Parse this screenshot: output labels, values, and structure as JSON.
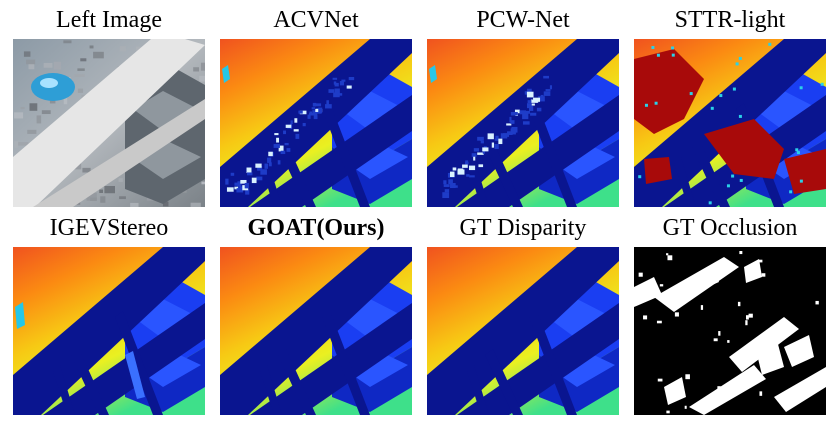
{
  "figure": {
    "panels": [
      {
        "id": "left-image",
        "caption": "Left Image",
        "kind": "rgb",
        "bold": false
      },
      {
        "id": "acvnet",
        "caption": "ACVNet",
        "kind": "disparity",
        "bold": false,
        "artifact": "noise"
      },
      {
        "id": "pcw-net",
        "caption": "PCW-Net",
        "kind": "disparity",
        "bold": false,
        "artifact": "noise"
      },
      {
        "id": "sttr-light",
        "caption": "STTR-light",
        "kind": "disparity",
        "bold": false,
        "artifact": "occlusion-red"
      },
      {
        "id": "igevstereo",
        "caption": "IGEVStereo",
        "kind": "disparity",
        "bold": false,
        "artifact": "light"
      },
      {
        "id": "goat-ours",
        "caption": "GOAT(Ours)",
        "kind": "disparity",
        "bold": true,
        "artifact": "none"
      },
      {
        "id": "gt-disparity",
        "caption": "GT Disparity",
        "kind": "disparity",
        "bold": false,
        "artifact": "none"
      },
      {
        "id": "gt-occlusion",
        "caption": "GT Occlusion",
        "kind": "occlusion",
        "bold": false
      }
    ],
    "colors": {
      "beam": "#0a1590",
      "shelf": "#1a3ef2",
      "shelf_dark": "#0f28c4",
      "occlusion_red": "#a80a0a",
      "noise": "#1e3cc8"
    }
  }
}
